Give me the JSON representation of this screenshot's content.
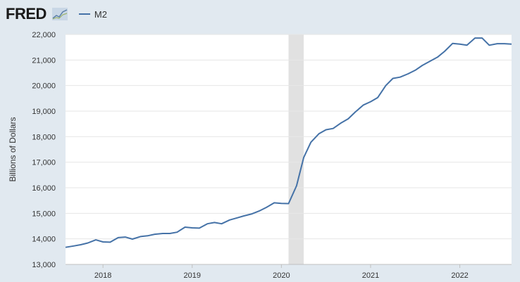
{
  "logo_text": "FRED",
  "chart_data": {
    "type": "line",
    "ylabel": "Billions of Dollars",
    "ylim": [
      13000,
      22000
    ],
    "yticks": [
      13000,
      14000,
      15000,
      16000,
      17000,
      18000,
      19000,
      20000,
      21000,
      22000
    ],
    "ytick_labels": [
      "13,000",
      "14,000",
      "15,000",
      "16,000",
      "17,000",
      "18,000",
      "19,000",
      "20,000",
      "21,000",
      "22,000"
    ],
    "xlim": [
      2017.58,
      2022.58
    ],
    "xticks": [
      2018,
      2019,
      2020,
      2021,
      2022
    ],
    "xtick_labels": [
      "2018",
      "2019",
      "2020",
      "2021",
      "2022"
    ],
    "recession": [
      2020.08,
      2020.25
    ],
    "colors": {
      "line": "#4572a7",
      "recession": "#e1e1e1"
    },
    "series": [
      {
        "name": "M2",
        "x": [
          2017.58,
          2017.67,
          2017.75,
          2017.83,
          2017.92,
          2018.0,
          2018.08,
          2018.17,
          2018.25,
          2018.33,
          2018.42,
          2018.5,
          2018.58,
          2018.67,
          2018.75,
          2018.83,
          2018.92,
          2019.0,
          2019.08,
          2019.17,
          2019.25,
          2019.33,
          2019.42,
          2019.5,
          2019.58,
          2019.67,
          2019.75,
          2019.83,
          2019.92,
          2020.0,
          2020.08,
          2020.17,
          2020.25,
          2020.33,
          2020.42,
          2020.5,
          2020.58,
          2020.67,
          2020.75,
          2020.83,
          2020.92,
          2021.0,
          2021.08,
          2021.17,
          2021.25,
          2021.33,
          2021.42,
          2021.5,
          2021.58,
          2021.67,
          2021.75,
          2021.83,
          2021.92,
          2022.0,
          2022.08,
          2022.17,
          2022.25,
          2022.33,
          2022.42,
          2022.5,
          2022.58
        ],
        "values": [
          13670,
          13720,
          13770,
          13840,
          13960,
          13880,
          13870,
          14050,
          14070,
          13990,
          14090,
          14120,
          14180,
          14210,
          14210,
          14260,
          14460,
          14430,
          14420,
          14590,
          14640,
          14590,
          14740,
          14820,
          14900,
          14980,
          15090,
          15230,
          15410,
          15390,
          15380,
          16080,
          17180,
          17780,
          18110,
          18270,
          18320,
          18540,
          18700,
          18970,
          19240,
          19370,
          19530,
          20000,
          20280,
          20330,
          20460,
          20600,
          20790,
          20960,
          21110,
          21340,
          21650,
          21620,
          21580,
          21860,
          21860,
          21580,
          21640,
          21640,
          21620
        ]
      }
    ]
  }
}
